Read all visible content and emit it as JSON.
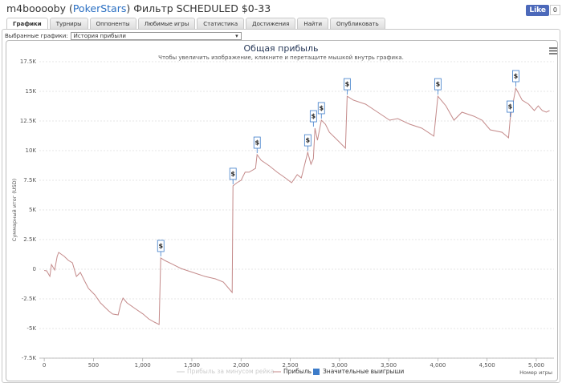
{
  "header": {
    "user": "m4booooby (",
    "site": "PokerStars",
    "filter": ") Фильтр SCHEDULED $0-33",
    "like": "Like",
    "like_count": "0"
  },
  "tabs": [
    "Графики",
    "Турниры",
    "Оппоненты",
    "Любимые игры",
    "Статистика",
    "Достижения",
    "Найти",
    "Опубликовать"
  ],
  "selector": {
    "label": "Выбранные графики:",
    "value": "История прибыли"
  },
  "chart_data": {
    "type": "line",
    "title": "Общая прибыль",
    "subtitle": "Чтобы увеличить изображение, кликните и перетащите мышкой внутрь графика.",
    "y_label": "Суммарный итог (USD)",
    "x_label": "Номер игры",
    "xlim": [
      -50,
      5180
    ],
    "ylim": [
      -7500,
      17500
    ],
    "xticks": [
      0,
      500,
      {
        "value": 1000,
        "label": "1,000"
      },
      {
        "value": 1500,
        "label": "1,500"
      },
      {
        "value": 2000,
        "label": "2,000"
      },
      {
        "value": 2500,
        "label": "2,500"
      },
      {
        "value": 3000,
        "label": "3,000"
      },
      {
        "value": 3500,
        "label": "3,500"
      },
      {
        "value": 4000,
        "label": "4,000"
      },
      {
        "value": 4500,
        "label": "4,500"
      },
      {
        "value": 5000,
        "label": "5,000"
      }
    ],
    "yticks": [
      {
        "value": -7500,
        "label": "-7.5K"
      },
      {
        "value": -5000,
        "label": "-5K"
      },
      {
        "value": -2500,
        "label": "-2.5K"
      },
      0,
      {
        "value": 2500,
        "label": "2.5K"
      },
      {
        "value": 5000,
        "label": "5K"
      },
      {
        "value": 7500,
        "label": "7.5K"
      },
      {
        "value": 10000,
        "label": "10K"
      },
      {
        "value": 12500,
        "label": "12.5K"
      },
      {
        "value": 15000,
        "label": "15K"
      },
      {
        "value": 17500,
        "label": "17.5K"
      }
    ],
    "grid": true,
    "x": [
      0,
      24,
      57,
      73,
      106,
      131,
      147,
      204,
      245,
      286,
      327,
      367,
      408,
      449,
      514,
      571,
      653,
      694,
      751,
      776,
      800,
      841,
      922,
      1004,
      1061,
      1118,
      1167,
      1184,
      1224,
      1306,
      1388,
      1510,
      1633,
      1739,
      1820,
      1910,
      1918,
      1959,
      2000,
      2041,
      2082,
      2147,
      2163,
      2204,
      2286,
      2367,
      2449,
      2514,
      2571,
      2612,
      2678,
      2710,
      2735,
      2751,
      2776,
      2816,
      2857,
      2898,
      2980,
      3061,
      3078,
      3143,
      3265,
      3388,
      3510,
      3592,
      3714,
      3837,
      3959,
      4000,
      4082,
      4163,
      4245,
      4367,
      4449,
      4531,
      4653,
      4718,
      4735,
      4792,
      4857,
      4922,
      4980,
      5020,
      5061,
      5102,
      5135
    ],
    "series": [
      {
        "name": "Прибыль",
        "color": "#c48a8a",
        "values": [
          -100,
          -135,
          -600,
          400,
          -70,
          1080,
          1420,
          1080,
          740,
          540,
          -610,
          -270,
          -950,
          -1620,
          -2160,
          -2840,
          -3510,
          -3780,
          -3850,
          -2970,
          -2430,
          -2840,
          -3310,
          -3780,
          -4190,
          -4460,
          -4660,
          950,
          740,
          410,
          70,
          -270,
          -610,
          -810,
          -1080,
          -1960,
          7030,
          7300,
          7500,
          8180,
          8180,
          8510,
          9660,
          9190,
          8720,
          8180,
          7700,
          7300,
          7970,
          7700,
          9860,
          8850,
          9320,
          11890,
          10880,
          12570,
          12230,
          11550,
          10880,
          10200,
          14590,
          14260,
          13920,
          13240,
          12570,
          12700,
          12230,
          11890,
          11220,
          14590,
          13780,
          12570,
          13240,
          12900,
          12570,
          11760,
          11550,
          11080,
          12700,
          15270,
          14260,
          13920,
          13380,
          13780,
          13380,
          13240,
          13380
        ]
      }
    ],
    "inactive_series": {
      "name": "Прибыль за минусом рейка",
      "color": "#cccccc"
    },
    "flags": {
      "name": "Значительные выигрыши",
      "color": "#3d7cc9",
      "label": "$",
      "x": [
        1184,
        1918,
        2163,
        2678,
        2735,
        2816,
        3078,
        4000,
        4735,
        4792
      ],
      "y": [
        950,
        7030,
        9660,
        9860,
        11890,
        12570,
        14590,
        14590,
        12700,
        15270
      ]
    }
  }
}
